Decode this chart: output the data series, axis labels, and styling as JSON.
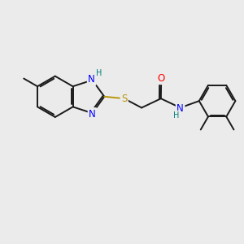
{
  "bg_color": "#ebebeb",
  "bond_color": "#1a1a1a",
  "bond_width": 1.4,
  "atom_colors": {
    "N": "#0000ff",
    "S": "#b8960c",
    "O": "#ff0000",
    "H_teal": "#008080"
  },
  "font_size_atom": 8.5,
  "font_size_h": 7.0
}
